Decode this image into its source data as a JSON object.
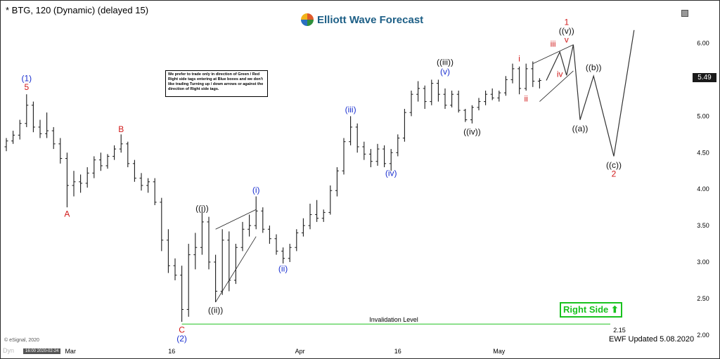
{
  "header": {
    "title": "* BTG, 120 (Dynamic) (delayed 15)",
    "logo": "Elliott Wave Forecast"
  },
  "note": "We prefer to trade only in direction of Green / Red Right side tags entering at Blue boxes and we don't like trading Turning up / down arrows or against the direction of Right side tags.",
  "right_side_tag": "Right Side",
  "current_price": "5.49",
  "copyright": "© eSignal, 2020",
  "updated": "EWF Updated 5.08.2020",
  "time_chip": "16:00 2020-02-24",
  "dyn_watermark": "Dyn",
  "colors": {
    "candles": "#1a1a1a",
    "invalidation": "#22c322",
    "blue": "#1a2fd0",
    "red": "#d11919",
    "black": "#111111",
    "tag": "#19c21e"
  },
  "icons": {
    "arrow_up": "arrow-up-icon",
    "maximize": "maximize-icon"
  },
  "chart_data": {
    "type": "line",
    "title": "",
    "ylim": [
      1.95,
      6.4
    ],
    "y_ticks": [
      "6.00",
      "5.50",
      "5.00",
      "4.50",
      "4.00",
      "3.50",
      "3.00",
      "2.50",
      "2.00"
    ],
    "x_ticks": [
      "Mar",
      "16",
      "Apr",
      "16",
      "May"
    ],
    "grid": false,
    "invalidation": {
      "label": "Invalidation Level",
      "value": 2.15,
      "value_label": "2.15"
    },
    "bars": [
      [
        4.58,
        4.7,
        4.52,
        4.66
      ],
      [
        4.66,
        4.8,
        4.62,
        4.74
      ],
      [
        4.74,
        4.95,
        4.68,
        4.9
      ],
      [
        4.9,
        5.3,
        4.85,
        5.15
      ],
      [
        5.15,
        5.2,
        4.78,
        4.85
      ],
      [
        4.85,
        4.95,
        4.7,
        4.76
      ],
      [
        4.76,
        5.05,
        4.7,
        4.8
      ],
      [
        4.8,
        4.85,
        4.55,
        4.62
      ],
      [
        4.62,
        4.7,
        4.35,
        4.42
      ],
      [
        4.42,
        4.5,
        3.75,
        4.05
      ],
      [
        4.05,
        4.25,
        3.9,
        4.1
      ],
      [
        4.1,
        4.2,
        3.95,
        4.08
      ],
      [
        4.08,
        4.3,
        4.02,
        4.22
      ],
      [
        4.22,
        4.45,
        4.15,
        4.4
      ],
      [
        4.4,
        4.5,
        4.25,
        4.32
      ],
      [
        4.32,
        4.48,
        4.28,
        4.45
      ],
      [
        4.45,
        4.6,
        4.4,
        4.55
      ],
      [
        4.55,
        4.75,
        4.5,
        4.62
      ],
      [
        4.62,
        4.65,
        4.3,
        4.35
      ],
      [
        4.35,
        4.4,
        4.1,
        4.15
      ],
      [
        4.15,
        4.22,
        3.98,
        4.05
      ],
      [
        4.05,
        4.15,
        3.95,
        4.1
      ],
      [
        4.1,
        4.15,
        3.78,
        3.82
      ],
      [
        3.82,
        3.88,
        3.15,
        3.3
      ],
      [
        3.3,
        3.45,
        2.85,
        2.95
      ],
      [
        2.95,
        3.05,
        2.75,
        2.82
      ],
      [
        2.82,
        2.95,
        2.18,
        2.35
      ],
      [
        2.35,
        3.25,
        2.25,
        3.1
      ],
      [
        3.1,
        3.4,
        2.9,
        3.2
      ],
      [
        3.2,
        3.7,
        3.1,
        3.55
      ],
      [
        3.55,
        3.62,
        2.9,
        3.0
      ],
      [
        3.0,
        3.1,
        2.45,
        2.6
      ],
      [
        2.6,
        3.45,
        2.55,
        3.3
      ],
      [
        3.3,
        3.42,
        2.6,
        2.75
      ],
      [
        2.75,
        3.25,
        2.7,
        3.2
      ],
      [
        3.2,
        3.55,
        3.15,
        3.45
      ],
      [
        3.45,
        3.65,
        3.35,
        3.5
      ],
      [
        3.5,
        3.9,
        3.45,
        3.7
      ],
      [
        3.7,
        3.75,
        3.4,
        3.45
      ],
      [
        3.45,
        3.5,
        3.25,
        3.32
      ],
      [
        3.32,
        3.38,
        3.1,
        3.15
      ],
      [
        3.15,
        3.2,
        2.98,
        3.05
      ],
      [
        3.05,
        3.25,
        3.0,
        3.2
      ],
      [
        3.2,
        3.45,
        3.15,
        3.4
      ],
      [
        3.4,
        3.6,
        3.35,
        3.5
      ],
      [
        3.5,
        3.8,
        3.45,
        3.65
      ],
      [
        3.65,
        3.85,
        3.55,
        3.6
      ],
      [
        3.6,
        3.72,
        3.55,
        3.68
      ],
      [
        3.68,
        4.05,
        3.65,
        3.98
      ],
      [
        3.98,
        4.3,
        3.9,
        4.25
      ],
      [
        4.25,
        4.7,
        4.2,
        4.65
      ],
      [
        4.65,
        5.0,
        4.6,
        4.85
      ],
      [
        4.85,
        4.9,
        4.5,
        4.58
      ],
      [
        4.58,
        4.65,
        4.4,
        4.48
      ],
      [
        4.48,
        4.55,
        4.3,
        4.38
      ],
      [
        4.38,
        4.62,
        4.32,
        4.55
      ],
      [
        4.55,
        4.6,
        4.3,
        4.35
      ],
      [
        4.35,
        4.55,
        4.25,
        4.5
      ],
      [
        4.5,
        4.75,
        4.45,
        4.7
      ],
      [
        4.7,
        5.1,
        4.65,
        5.05
      ],
      [
        5.05,
        5.35,
        5.0,
        5.3
      ],
      [
        5.3,
        5.48,
        5.2,
        5.38
      ],
      [
        5.38,
        5.42,
        5.1,
        5.2
      ],
      [
        5.2,
        5.5,
        5.15,
        5.45
      ],
      [
        5.45,
        5.5,
        5.2,
        5.3
      ],
      [
        5.3,
        5.38,
        5.1,
        5.15
      ],
      [
        5.15,
        5.35,
        5.12,
        5.3
      ],
      [
        5.3,
        5.35,
        5.05,
        5.08
      ],
      [
        5.08,
        5.1,
        4.92,
        4.95
      ],
      [
        4.95,
        5.15,
        4.9,
        5.12
      ],
      [
        5.12,
        5.25,
        5.08,
        5.2
      ],
      [
        5.2,
        5.35,
        5.15,
        5.3
      ],
      [
        5.3,
        5.38,
        5.22,
        5.25
      ],
      [
        5.25,
        5.35,
        5.2,
        5.32
      ],
      [
        5.32,
        5.55,
        5.28,
        5.5
      ],
      [
        5.5,
        5.72,
        5.45,
        5.65
      ],
      [
        5.65,
        5.68,
        5.3,
        5.38
      ],
      [
        5.38,
        5.72,
        5.35,
        5.65
      ],
      [
        5.65,
        5.75,
        5.4,
        5.48
      ],
      [
        5.48,
        5.52,
        5.38,
        5.49
      ]
    ],
    "projection": [
      {
        "i": 80,
        "y": 5.49
      },
      {
        "i": 82,
        "y": 5.88
      },
      {
        "i": 83,
        "y": 5.56
      },
      {
        "i": 84,
        "y": 5.98
      },
      {
        "i": 85,
        "y": 4.95
      },
      {
        "i": 87,
        "y": 5.55
      },
      {
        "i": 90,
        "y": 4.45
      },
      {
        "i": 93,
        "y": 6.18
      }
    ],
    "labels": [
      {
        "text": "(1)",
        "i": 3,
        "y": 5.48,
        "color": "blue"
      },
      {
        "text": "5",
        "i": 3,
        "y": 5.36,
        "color": "red"
      },
      {
        "text": "B",
        "i": 17,
        "y": 4.78,
        "color": "red"
      },
      {
        "text": "A",
        "i": 9,
        "y": 3.62,
        "color": "red"
      },
      {
        "text": "C",
        "i": 26,
        "y": 2.03,
        "color": "red"
      },
      {
        "text": "(2)",
        "i": 26,
        "y": 1.91,
        "color": "blue"
      },
      {
        "text": "((i))",
        "i": 29,
        "y": 3.7,
        "color": "black"
      },
      {
        "text": "((ii))",
        "i": 31,
        "y": 2.3,
        "color": "black"
      },
      {
        "text": "(i)",
        "i": 37,
        "y": 3.95,
        "color": "blue"
      },
      {
        "text": "(ii)",
        "i": 41,
        "y": 2.87,
        "color": "blue"
      },
      {
        "text": "(iii)",
        "i": 51,
        "y": 5.05,
        "color": "blue"
      },
      {
        "text": "(iv)",
        "i": 57,
        "y": 4.18,
        "color": "blue"
      },
      {
        "text": "((iii))",
        "i": 65,
        "y": 5.7,
        "color": "black"
      },
      {
        "text": "(v)",
        "i": 65,
        "y": 5.57,
        "color": "blue"
      },
      {
        "text": "((iv))",
        "i": 69,
        "y": 4.75,
        "color": "black"
      },
      {
        "text": "i",
        "i": 76,
        "y": 5.75,
        "color": "red"
      },
      {
        "text": "ii",
        "i": 77,
        "y": 5.2,
        "color": "red"
      },
      {
        "text": "iii",
        "i": 81,
        "y": 5.95,
        "color": "red"
      },
      {
        "text": "iv",
        "i": 82,
        "y": 5.54,
        "color": "red"
      },
      {
        "text": "v",
        "i": 83,
        "y": 6.01,
        "color": "red"
      },
      {
        "text": "((v))",
        "i": 83,
        "y": 6.13,
        "color": "black"
      },
      {
        "text": "1",
        "i": 83,
        "y": 6.25,
        "color": "red"
      },
      {
        "text": "((a))",
        "i": 85,
        "y": 4.79,
        "color": "black"
      },
      {
        "text": "((b))",
        "i": 87,
        "y": 5.63,
        "color": "black"
      },
      {
        "text": "((c))",
        "i": 90,
        "y": 4.29,
        "color": "black"
      },
      {
        "text": "2",
        "i": 90,
        "y": 4.17,
        "color": "red"
      }
    ]
  }
}
